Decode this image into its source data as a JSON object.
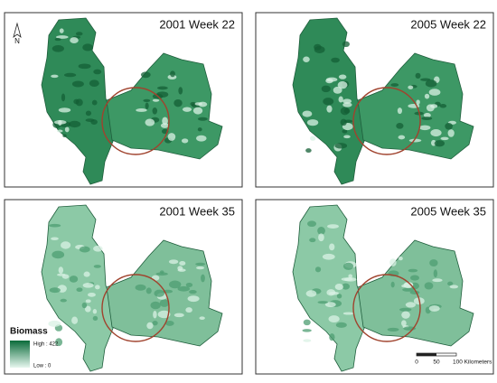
{
  "panels": [
    {
      "title": "2001 Week 22"
    },
    {
      "title": "2005 Week 22"
    },
    {
      "title": "2001 Week 35"
    },
    {
      "title": "2005 Week 35"
    }
  ],
  "north_arrow": "N",
  "legend": {
    "title": "Biomass",
    "high": "High : 422",
    "low": "Low : 0"
  },
  "scale_bar": {
    "labels": [
      "0",
      "50",
      "100 Kilometers"
    ]
  }
}
